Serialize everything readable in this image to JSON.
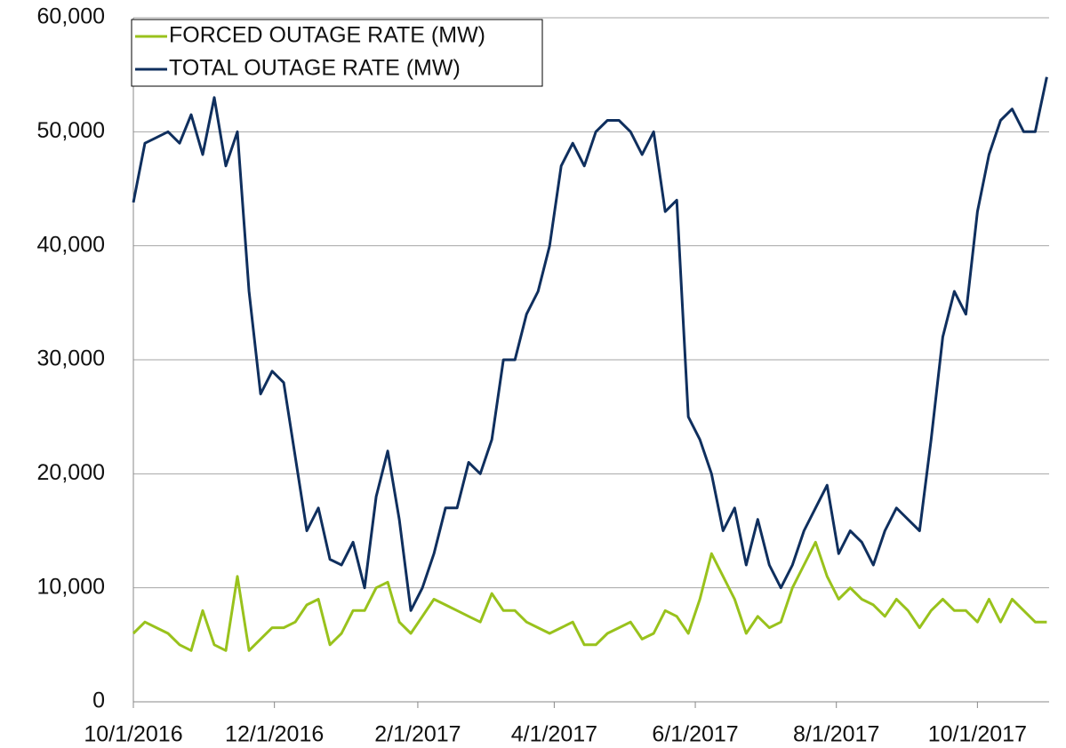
{
  "chart_data": {
    "type": "line",
    "x": [
      "10/1/2016",
      "10/6/2016",
      "10/11/2016",
      "10/16/2016",
      "10/21/2016",
      "10/26/2016",
      "10/31/2016",
      "11/5/2016",
      "11/10/2016",
      "11/15/2016",
      "11/20/2016",
      "11/25/2016",
      "11/30/2016",
      "12/5/2016",
      "12/10/2016",
      "12/15/2016",
      "12/20/2016",
      "12/25/2016",
      "12/30/2016",
      "1/4/2017",
      "1/9/2017",
      "1/14/2017",
      "1/19/2017",
      "1/24/2017",
      "1/29/2017",
      "2/3/2017",
      "2/8/2017",
      "2/13/2017",
      "2/18/2017",
      "2/23/2017",
      "2/28/2017",
      "3/5/2017",
      "3/10/2017",
      "3/15/2017",
      "3/20/2017",
      "3/25/2017",
      "3/30/2017",
      "4/4/2017",
      "4/9/2017",
      "4/14/2017",
      "4/19/2017",
      "4/24/2017",
      "4/29/2017",
      "5/4/2017",
      "5/9/2017",
      "5/14/2017",
      "5/19/2017",
      "5/24/2017",
      "5/29/2017",
      "6/3/2017",
      "6/8/2017",
      "6/13/2017",
      "6/18/2017",
      "6/23/2017",
      "6/28/2017",
      "7/3/2017",
      "7/8/2017",
      "7/13/2017",
      "7/18/2017",
      "7/23/2017",
      "7/28/2017",
      "8/2/2017",
      "8/7/2017",
      "8/12/2017",
      "8/17/2017",
      "8/22/2017",
      "8/27/2017",
      "9/1/2017",
      "9/6/2017",
      "9/11/2017",
      "9/16/2017",
      "9/21/2017",
      "9/26/2017",
      "10/1/2017",
      "10/6/2017",
      "10/11/2017",
      "10/16/2017",
      "10/21/2017",
      "10/26/2017",
      "10/31/2017"
    ],
    "series": [
      {
        "name": "FORCED OUTAGE RATE (MW)",
        "color": "#99c21c",
        "values": [
          6000,
          7000,
          6500,
          6000,
          5000,
          4500,
          8000,
          5000,
          4500,
          11000,
          4500,
          5500,
          6500,
          6500,
          7000,
          8500,
          9000,
          5000,
          6000,
          8000,
          8000,
          10000,
          10500,
          7000,
          6000,
          7500,
          9000,
          8500,
          8000,
          7500,
          7000,
          9500,
          8000,
          8000,
          7000,
          6500,
          6000,
          6500,
          7000,
          5000,
          5000,
          6000,
          6500,
          7000,
          5500,
          6000,
          8000,
          7500,
          6000,
          9000,
          13000,
          11000,
          9000,
          6000,
          7500,
          6500,
          7000,
          10000,
          12000,
          14000,
          11000,
          9000,
          10000,
          9000,
          8500,
          7500,
          9000,
          8000,
          6500,
          8000,
          9000,
          8000,
          8000,
          7000,
          9000,
          7000,
          9000,
          8000,
          7000,
          7000
        ]
      },
      {
        "name": "TOTAL OUTAGE RATE (MW)",
        "color": "#0f2f5e",
        "values": [
          43800,
          49000,
          49500,
          50000,
          49000,
          51500,
          48000,
          53000,
          47000,
          50000,
          36000,
          27000,
          29000,
          28000,
          21500,
          15000,
          17000,
          12500,
          12000,
          14000,
          10000,
          18000,
          22000,
          16000,
          8000,
          10000,
          13000,
          17000,
          17000,
          21000,
          20000,
          23000,
          30000,
          30000,
          34000,
          36000,
          40000,
          47000,
          49000,
          47000,
          50000,
          51000,
          51000,
          50000,
          48000,
          50000,
          43000,
          44000,
          25000,
          23000,
          20000,
          15000,
          17000,
          12000,
          16000,
          12000,
          10000,
          12000,
          15000,
          17000,
          19000,
          13000,
          15000,
          14000,
          12000,
          15000,
          17000,
          16000,
          15000,
          23000,
          32000,
          36000,
          34000,
          43000,
          48000,
          51000,
          52000,
          50000,
          50000,
          54800
        ]
      }
    ],
    "xlim": [
      "10/1/2016",
      "11/1/2017"
    ],
    "xticks": [
      "10/1/2016",
      "12/1/2016",
      "2/1/2017",
      "4/1/2017",
      "6/1/2017",
      "8/1/2017",
      "10/1/2017"
    ],
    "ylim": [
      0,
      60000
    ],
    "yticks": [
      0,
      {
        "value": 10000,
        "label": "10,000"
      },
      {
        "value": 20000,
        "label": "20,000"
      },
      {
        "value": 30000,
        "label": "30,000"
      },
      {
        "value": 40000,
        "label": "40,000"
      },
      {
        "value": 50000,
        "label": "50,000"
      },
      {
        "value": 60000,
        "label": "60,000"
      }
    ],
    "grid": true,
    "legend": "top-left"
  }
}
